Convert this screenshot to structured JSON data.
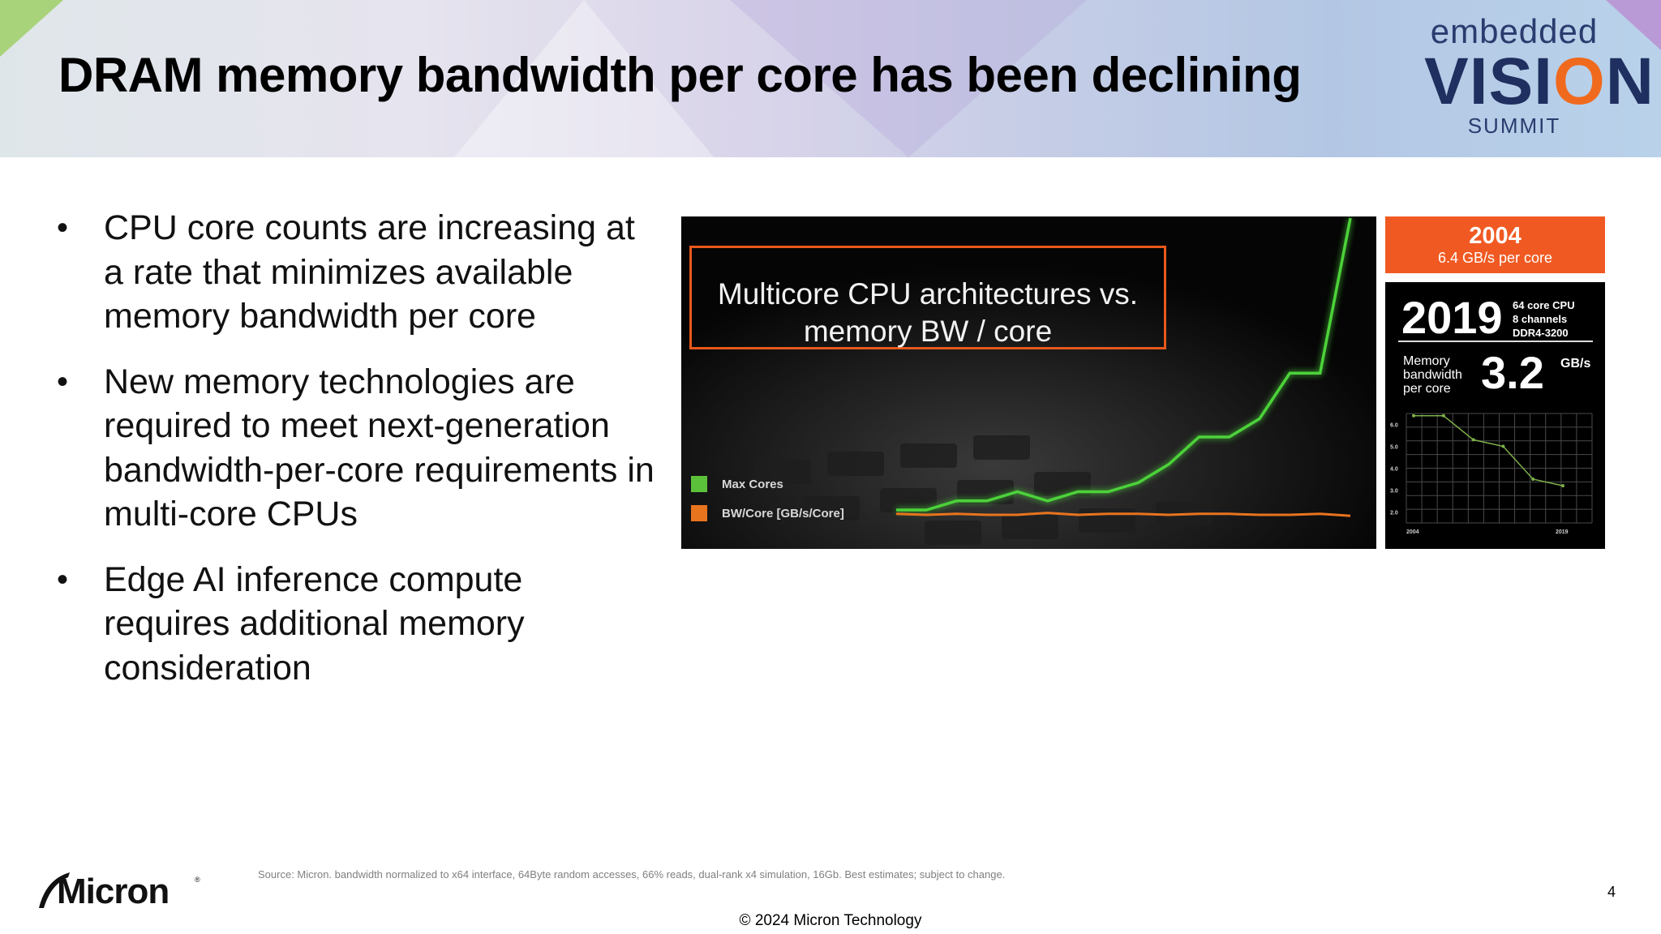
{
  "slide": {
    "title": "DRAM memory bandwidth per core has been declining",
    "page_number": "4",
    "copyright": "© 2024 Micron Technology",
    "source": "Source: Micron. bandwidth normalized to x64 interface, 64Byte random accesses, 66% reads, dual-rank x4 simulation, 16Gb. Best estimates; subject to change."
  },
  "event_logo": {
    "line1": "embedded",
    "line2_pre": "VISI",
    "line2_accent": "O",
    "line2_post": "N",
    "line3": "SUMMIT"
  },
  "company_logo": {
    "name": "Micron"
  },
  "bullets": [
    {
      "text": "CPU core counts are increasing at a rate that minimizes available memory bandwidth per core"
    },
    {
      "text": "New memory technologies are required to meet next-generation bandwidth-per-core requirements in multi-core CPUs"
    },
    {
      "text": "Edge AI inference compute requires additional memory consideration"
    }
  ],
  "bullet_glyph": "•",
  "chart_data": [
    {
      "type": "line",
      "title": "Multicore CPU architectures vs. memory BW / core",
      "series": [
        {
          "name": "Max Cores",
          "color": "#4cd23a",
          "values": [
            1,
            1,
            2,
            2,
            3,
            2,
            3,
            3,
            4,
            6,
            9,
            9,
            11,
            16,
            16,
            33
          ]
        },
        {
          "name": "BW/Core [GB/s/Core]",
          "color": "#e8741e",
          "values": [
            1.1,
            1.0,
            1.1,
            1.0,
            1.0,
            1.2,
            1.0,
            1.1,
            1.1,
            1.0,
            1.1,
            1.1,
            1.0,
            1.0,
            1.1,
            0.9
          ]
        }
      ]
    },
    {
      "type": "line",
      "x": [
        "2004",
        "",
        "",
        "",
        "",
        "2019"
      ],
      "y_ticks": [
        "6.0",
        "5.0",
        "4.0",
        "3.0",
        "2.0"
      ],
      "ylim": [
        1.5,
        6.5
      ],
      "series": [
        {
          "name": "",
          "color": "#7fb24a",
          "values": [
            6.4,
            6.4,
            5.3,
            5.0,
            3.5,
            3.2
          ]
        }
      ]
    }
  ],
  "info_2004": {
    "year": "2004",
    "sub": "6.4 GB/s per core"
  },
  "info_2019": {
    "year": "2019",
    "spec1": "64 core CPU",
    "spec2": "8 channels",
    "spec3": "DDR4-3200",
    "bw_label1": "Memory",
    "bw_label2": "bandwidth",
    "bw_label3": "per core",
    "bw_value": "3.2",
    "bw_unit": "GB/s"
  }
}
